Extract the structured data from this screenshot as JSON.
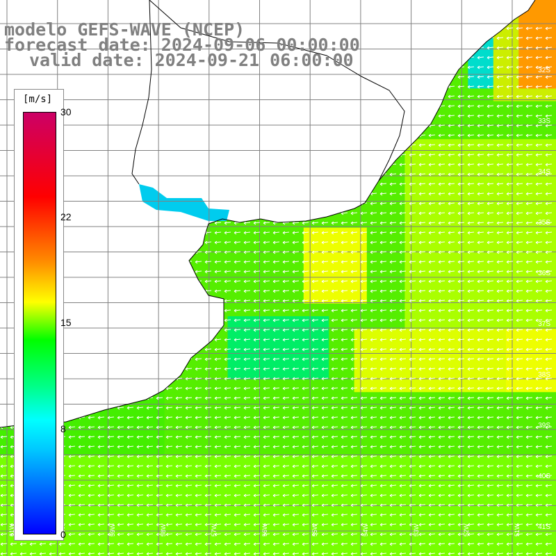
{
  "title": {
    "line1": "modelo GEFS-WAVE (NCEP)",
    "line2": "forecast date: 2024-09-06 00:00:00",
    "line3": "valid date: 2024-09-21 06:00:00"
  },
  "colorbar": {
    "unit": "[m/s]",
    "ticks": [
      {
        "label": "30",
        "value": 30
      },
      {
        "label": "22",
        "value": 22
      },
      {
        "label": "15",
        "value": 15
      },
      {
        "label": "8",
        "value": 8
      },
      {
        "label": "0",
        "value": 0
      }
    ],
    "range": [
      0,
      30
    ]
  },
  "map": {
    "lat_labels": [
      "32S",
      "33S",
      "34S",
      "35S",
      "36S",
      "37S",
      "38S",
      "39S",
      "40S",
      "41S"
    ],
    "lon_labels": [
      "61W",
      "60W",
      "59W",
      "58W",
      "57W",
      "56W",
      "55W",
      "54W",
      "53W",
      "52W",
      "51W"
    ],
    "lon_range": [
      -61.5,
      -50.5
    ],
    "lat_range": [
      -41.5,
      -30.8
    ],
    "land_color": "#ffffff",
    "coast_color": "#000000",
    "grid_color": "#808080",
    "arrow_color": "#ffffff"
  }
}
